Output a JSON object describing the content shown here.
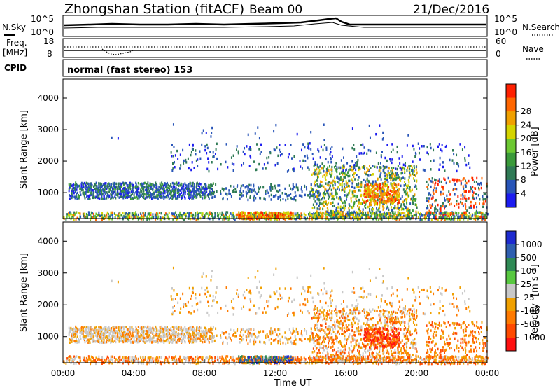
{
  "header": {
    "station": "Zhongshan Station (fitACF)",
    "beam": "Beam 00",
    "date": "21/Dec/2016"
  },
  "noise_panel": {
    "left_label": "N.Sky",
    "left_ticks": [
      "10^5",
      "10^0"
    ],
    "right_label": "N.Search",
    "right_ticks": [
      "10^5",
      "10^0"
    ]
  },
  "freq_panel": {
    "left_label_line1": "Freq.",
    "left_label_line2": "[MHz]",
    "left_ticks": [
      "18",
      "8"
    ],
    "right_label": "Nave",
    "right_ticks": [
      "60",
      "0"
    ]
  },
  "cpid": {
    "label": "CPID",
    "text": "normal (fast stereo) 153"
  },
  "colors": {
    "power_scale": [
      "#1c1cf0",
      "#2855b8",
      "#2f7a55",
      "#3a9a3a",
      "#6cc832",
      "#d4d400",
      "#f0a000",
      "#ff6600",
      "#ff2000"
    ],
    "velocity_scale": [
      "#1e2bd0",
      "#2f5fb0",
      "#2f8a55",
      "#58c840",
      "#c8c8c8",
      "#f0a000",
      "#ff7a00",
      "#ff4a00",
      "#ff1010"
    ]
  },
  "chart_data": [
    {
      "type": "heatmap",
      "panel": "power",
      "ylabel": "Slant Range [km]",
      "yticks": [
        1000,
        2000,
        3000,
        4000
      ],
      "ylim": [
        180,
        4600
      ],
      "xticks": [
        "00:00",
        "04:00",
        "08:00",
        "12:00",
        "16:00",
        "20:00",
        "00:00"
      ],
      "xlim_hours": [
        0,
        24
      ],
      "colorbar_label": "Power [dB]",
      "colorbar_ticks": [
        "4",
        "8",
        "12",
        "16",
        "20",
        "24",
        "28"
      ]
    },
    {
      "type": "heatmap",
      "panel": "velocity",
      "ylabel": "Slant Range [km]",
      "yticks": [
        1000,
        2000,
        3000,
        4000
      ],
      "ylim": [
        180,
        4600
      ],
      "xticks": [
        "00:00",
        "04:00",
        "08:00",
        "12:00",
        "16:00",
        "20:00",
        "00:00"
      ],
      "xlim_hours": [
        0,
        24
      ],
      "xlabel": "Time UT",
      "colorbar_label": "Velocity",
      "colorbar_unit": "[m s⁻¹]",
      "colorbar_ticks": [
        "1000",
        "500",
        "100",
        "25",
        "-25",
        "-100",
        "-500",
        "-1000"
      ]
    }
  ]
}
